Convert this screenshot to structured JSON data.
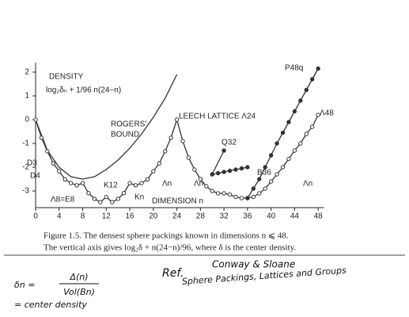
{
  "chart_data": {
    "type": "line",
    "title": "DENSITY",
    "y_formula": "log₂δₙ + 1/96 n(24−n)",
    "x_label": "DIMENSION n",
    "xlim": [
      0,
      49
    ],
    "ylim": [
      -3.7,
      2.4
    ],
    "xticks": [
      0,
      4,
      8,
      12,
      16,
      20,
      24,
      28,
      32,
      36,
      40,
      44,
      48
    ],
    "yticks": [
      2,
      1,
      0,
      -1,
      -2,
      -3
    ],
    "series": [
      {
        "name": "ROGERS' BOUND",
        "color": "#333333",
        "marker": "none",
        "x": [
          0,
          2,
          4,
          6,
          8,
          10,
          12,
          14,
          16,
          18,
          20,
          22,
          24
        ],
        "values": [
          0,
          -1.3,
          -2.0,
          -2.4,
          -2.5,
          -2.4,
          -2.1,
          -1.7,
          -1.2,
          -0.6,
          0.1,
          0.9,
          1.9
        ]
      },
      {
        "name": "Λn",
        "color": "#333333",
        "marker": "open",
        "x": [
          0,
          1,
          2,
          3,
          4,
          5,
          6,
          7,
          8,
          9,
          10,
          11,
          12,
          13,
          14,
          15,
          16,
          17,
          18,
          19,
          20,
          21,
          22,
          23,
          24,
          25,
          26,
          27,
          28,
          29,
          30,
          31,
          32,
          33,
          34,
          35,
          36,
          37,
          38,
          39,
          40,
          41,
          42,
          43,
          44,
          45,
          46,
          47,
          48
        ],
        "values": [
          0,
          -0.76,
          -1.33,
          -1.84,
          -2.17,
          -2.51,
          -2.67,
          -2.76,
          -2.67,
          -3.09,
          -3.33,
          -3.47,
          -3.25,
          -3.47,
          -3.33,
          -3.09,
          -2.67,
          -2.76,
          -2.67,
          -2.51,
          -2.17,
          -1.84,
          -1.33,
          -0.76,
          0,
          -0.9,
          -1.6,
          -2.1,
          -2.5,
          -2.8,
          -3.0,
          -3.1,
          -3.1,
          -3.15,
          -3.25,
          -3.3,
          -3.3,
          -3.25,
          -3.1,
          -2.9,
          -2.6,
          -2.3,
          -2.0,
          -1.65,
          -1.3,
          -1.0,
          -0.6,
          -0.3,
          0.2
        ]
      },
      {
        "name": "B36",
        "color": "#333333",
        "marker": "filled",
        "x": [
          30,
          31,
          32,
          33,
          34,
          35,
          36
        ],
        "values": [
          -2.3,
          -2.25,
          -2.2,
          -2.15,
          -2.1,
          -2.05,
          -2.0
        ]
      },
      {
        "name": "Q32",
        "color": "#333333",
        "marker": "filled",
        "x": [
          30,
          32
        ],
        "values": [
          -2.3,
          -1.3
        ]
      },
      {
        "name": "P48q",
        "color": "#333333",
        "marker": "filled",
        "x": [
          36,
          37,
          38,
          39,
          40,
          41,
          42,
          43,
          44,
          45,
          46,
          47,
          48
        ],
        "values": [
          -3.3,
          -2.9,
          -2.5,
          -2.0,
          -1.5,
          -1.0,
          -0.55,
          -0.1,
          0.35,
          0.8,
          1.25,
          1.7,
          2.15
        ]
      }
    ],
    "annotations": [
      "ROGERS'",
      "BOUND",
      "LEECH LATTICE Λ24",
      "D3",
      "D4",
      "Λ8=E8",
      "K12",
      "Kn",
      "Λn",
      "Λn",
      "Λn",
      "Q32",
      "B36",
      "P48q",
      "Λ48"
    ]
  },
  "caption": [
    "Figure 1.5.  The densest sphere packings known in dimensions n ⩽ 48.",
    "The vertical axis gives log₂δ + n(24−n)/96, where δ is the center density."
  ],
  "notes": {
    "lhs": "δn =",
    "numerator": "Δ(n)",
    "denominator": "Vol(Bn)",
    "definition": "= center density",
    "ref": "Ref.",
    "authors": "Conway & Sloane",
    "book": "Sphere Packings, Lattices and Groups"
  }
}
